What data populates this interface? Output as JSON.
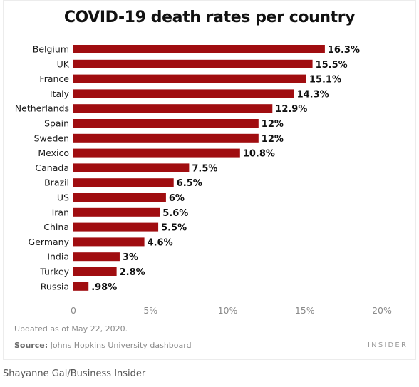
{
  "chart_data": {
    "type": "bar",
    "orientation": "horizontal",
    "title": "COVID-19 death rates per country",
    "categories": [
      "Belgium",
      "UK",
      "France",
      "Italy",
      "Netherlands",
      "Spain",
      "Sweden",
      "Mexico",
      "Canada",
      "Brazil",
      "US",
      "Iran",
      "China",
      "Germany",
      "India",
      "Turkey",
      "Russia"
    ],
    "values": [
      16.3,
      15.5,
      15.1,
      14.3,
      12.9,
      12,
      12,
      10.8,
      7.5,
      6.5,
      6,
      5.6,
      5.5,
      4.6,
      3,
      2.8,
      0.98
    ],
    "value_labels": [
      "16.3%",
      "15.5%",
      "15.1%",
      "14.3%",
      "12.9%",
      "12%",
      "12%",
      "10.8%",
      "7.5%",
      "6.5%",
      "6%",
      "5.6%",
      "5.5%",
      "4.6%",
      "3%",
      "2.8%",
      ".98%"
    ],
    "xlim": [
      0,
      20
    ],
    "xticks": [
      0,
      5,
      10,
      15,
      20
    ],
    "xtick_labels": [
      "0",
      "5%",
      "10%",
      "15%",
      "20%"
    ],
    "bar_color": "#a00d10",
    "grid": false,
    "legend": "none"
  },
  "footer": {
    "updated": "Updated as of May 22, 2020.",
    "source_label": "Source:",
    "source_text": "Johns Hopkins University dashboard",
    "brand": "INSIDER"
  },
  "credit": "Shayanne Gal/Business Insider"
}
